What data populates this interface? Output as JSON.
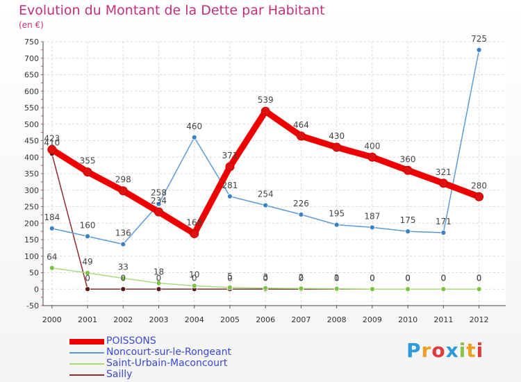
{
  "title": "Evolution du Montant de la Dette par Habitant",
  "subtitle": "(en €)",
  "logo": "Proxiti",
  "logo_colors": [
    "#2e9bd6",
    "#f0a020",
    "#e03a3a",
    "#2e9bd6",
    "#8bc34a",
    "#f0a020",
    "#e03a3a"
  ],
  "chart_data": {
    "type": "line",
    "categories": [
      "2000",
      "2001",
      "2002",
      "2003",
      "2004",
      "2005",
      "2006",
      "2007",
      "2008",
      "2009",
      "2010",
      "2011",
      "2012"
    ],
    "ylim": [
      -50,
      750
    ],
    "yticks": [
      -50,
      0,
      50,
      100,
      150,
      200,
      250,
      300,
      350,
      400,
      450,
      500,
      550,
      600,
      650,
      700,
      750
    ],
    "grid": true,
    "legend_position": "bottom-left",
    "series": [
      {
        "name": "POISSONS",
        "values": [
          423,
          355,
          298,
          234,
          168,
          371,
          539,
          464,
          430,
          400,
          360,
          321,
          280
        ],
        "color": "#ee0000",
        "marker": "#dd1111"
      },
      {
        "name": "Noncourt-sur-le-Rongeant",
        "values": [
          184,
          160,
          136,
          258,
          460,
          281,
          254,
          226,
          195,
          187,
          175,
          171,
          725
        ],
        "color": "#5b9bd5",
        "marker": "#3a82c4"
      },
      {
        "name": "Saint-Urbain-Maconcourt",
        "values": [
          64,
          49,
          33,
          18,
          10,
          5,
          3,
          2,
          1,
          0,
          0,
          0,
          0
        ],
        "color": "#a8dc7a",
        "marker": "#7cc242"
      },
      {
        "name": "Sailly",
        "values": [
          410,
          0,
          0,
          0,
          0,
          0,
          0,
          0,
          0,
          0,
          0,
          0,
          0
        ],
        "color": "#8b2c2c",
        "marker": "#5a1a1a"
      }
    ]
  }
}
